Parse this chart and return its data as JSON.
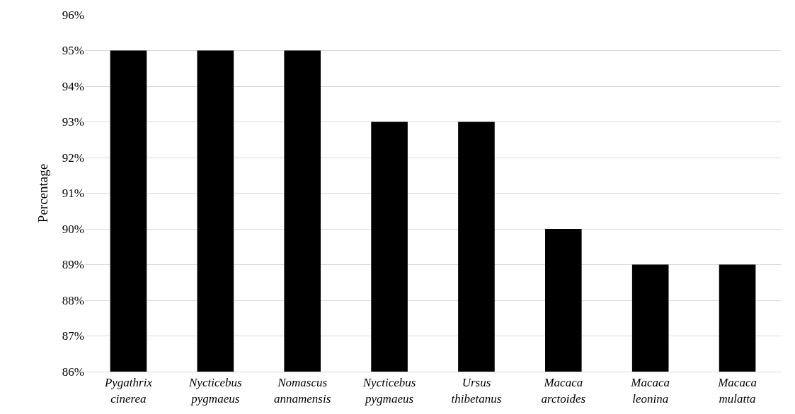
{
  "chart_data": {
    "type": "bar",
    "ylabel": "Percentage",
    "categories": [
      "Pygathrix\ncinerea",
      "Nycticebus\npygmaeus",
      "Nomascus\nannamensis",
      "Nycticebus\npygmaeus",
      "Ursus\nthibetanus",
      "Macaca\narctoides",
      "Macaca\nleonina",
      "Macaca\nmulatta"
    ],
    "values": [
      95,
      95,
      95,
      93,
      93,
      90,
      89,
      89
    ],
    "color": "#000000",
    "ylim": [
      86,
      96
    ],
    "yticks": [
      {
        "value": 86,
        "label": "86%"
      },
      {
        "value": 87,
        "label": "87%"
      },
      {
        "value": 88,
        "label": "88%"
      },
      {
        "value": 89,
        "label": "89%"
      },
      {
        "value": 90,
        "label": "90%"
      },
      {
        "value": 91,
        "label": "91%"
      },
      {
        "value": 92,
        "label": "92%"
      },
      {
        "value": 93,
        "label": "93%"
      },
      {
        "value": 94,
        "label": "94%"
      },
      {
        "value": 95,
        "label": "95%"
      },
      {
        "value": 96,
        "label": "96%"
      }
    ],
    "grid": "y",
    "legend": false
  }
}
